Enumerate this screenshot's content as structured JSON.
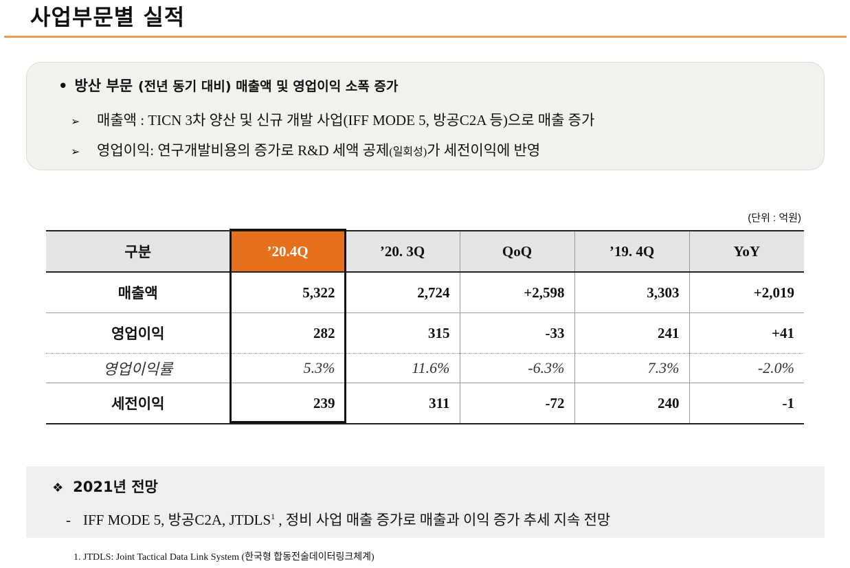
{
  "page": {
    "title": "사업부문별 실적"
  },
  "summary": {
    "bullet": "•",
    "headline": "방산 부문",
    "headline_sub": "(전년 동기 대비) 매출액 및 영업이익 소폭 증가",
    "points": [
      {
        "arrow": "➢",
        "text": "매출액  : TICN 3차 양산 및 신규 개발 사업(IFF MODE 5, 방공C2A 등)으로 매출 증가"
      },
      {
        "arrow": "➢",
        "text_before": "영업이익: 연구개발비용의 증가로 R&D 세액 공제",
        "text_small": "(일회성)",
        "text_after": "가 세전이익에 반영"
      }
    ]
  },
  "unit_label": "(단위 : 억원)",
  "table": {
    "headers": [
      "구분",
      "’20.4Q",
      "’20. 3Q",
      "QoQ",
      "’19. 4Q",
      "YoY"
    ],
    "rows": [
      {
        "label": "매출액",
        "values": [
          "5,322",
          "2,724",
          "+2,598",
          "3,303",
          "+2,019"
        ]
      },
      {
        "label": "영업이익",
        "values": [
          "282",
          "315",
          "-33",
          "241",
          "+41"
        ]
      },
      {
        "label": "영업이익률",
        "values": [
          "5.3%",
          "11.6%",
          "-6.3%",
          "7.3%",
          "-2.0%"
        ]
      },
      {
        "label": "세전이익",
        "values": [
          "239",
          "311",
          "-72",
          "240",
          "-1"
        ]
      }
    ],
    "highlight_color": "#e6701b"
  },
  "outlook": {
    "marker": "❖",
    "title": "2021년 전망",
    "dash": "-",
    "text_before": "IFF MODE 5, 방공C2A, JTDLS",
    "sup": "1",
    "text_after": ", 정비 사업 매출 증가로 매출과 이익 증가 추세 지속 전망"
  },
  "footnote": "1. JTDLS: Joint Tactical Data Link System (한국형 합동전술데이터링크체계)",
  "colors": {
    "accent": "#ef9b57",
    "header_bg": "#e5e5e5",
    "panel_bg": "#f1f1ee"
  }
}
